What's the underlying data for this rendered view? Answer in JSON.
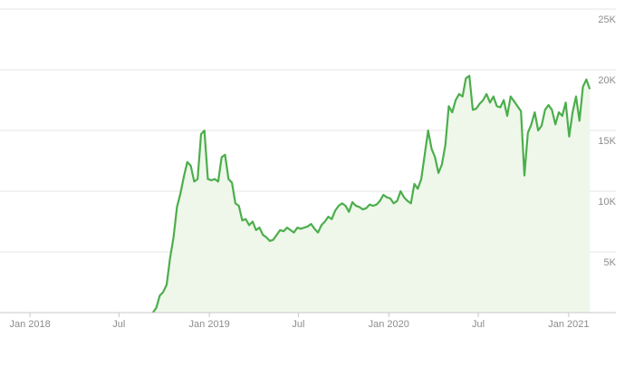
{
  "chart_data": {
    "type": "area",
    "title": "",
    "xlabel": "",
    "ylabel": "",
    "y_axis_position": "right",
    "grid": "horizontal",
    "legend": "none",
    "ylim": [
      0,
      25000
    ],
    "xlim": [
      "2017-11-01",
      "2021-02-20"
    ],
    "y_ticks": [
      {
        "value": 5000,
        "label": "5K"
      },
      {
        "value": 10000,
        "label": "10K"
      },
      {
        "value": 15000,
        "label": "15K"
      },
      {
        "value": 20000,
        "label": "20K"
      },
      {
        "value": 25000,
        "label": "25K"
      }
    ],
    "x_ticks": [
      {
        "date": "2018-01-01",
        "label": "Jan 2018"
      },
      {
        "date": "2018-07-01",
        "label": "Jul"
      },
      {
        "date": "2019-01-01",
        "label": "Jan 2019"
      },
      {
        "date": "2019-07-01",
        "label": "Jul"
      },
      {
        "date": "2020-01-01",
        "label": "Jan 2020"
      },
      {
        "date": "2020-07-01",
        "label": "Jul"
      },
      {
        "date": "2021-01-01",
        "label": "Jan 2021"
      }
    ],
    "colors": {
      "line": "#4cae4c",
      "fill": "#eef7ea",
      "grid": "#e6e6e6",
      "axis": "#c8c8c8",
      "text": "#8c8c8c"
    },
    "series": [
      {
        "x": [
          "2018-09-08",
          "2018-09-15",
          "2018-09-22",
          "2018-09-29",
          "2018-10-06",
          "2018-10-13",
          "2018-10-20",
          "2018-10-27",
          "2018-11-03",
          "2018-11-10",
          "2018-11-17",
          "2018-11-24",
          "2018-12-01",
          "2018-12-08",
          "2018-12-15",
          "2018-12-22",
          "2018-12-29",
          "2019-01-05",
          "2019-01-12",
          "2019-01-19",
          "2019-01-26",
          "2019-02-02",
          "2019-02-09",
          "2019-02-16",
          "2019-02-23",
          "2019-03-02",
          "2019-03-09",
          "2019-03-16",
          "2019-03-23",
          "2019-03-30",
          "2019-04-06",
          "2019-04-13",
          "2019-04-20",
          "2019-04-27",
          "2019-05-04",
          "2019-05-11",
          "2019-05-18",
          "2019-05-25",
          "2019-06-01",
          "2019-06-08",
          "2019-06-15",
          "2019-06-22",
          "2019-06-29",
          "2019-07-06",
          "2019-07-13",
          "2019-07-20",
          "2019-07-27",
          "2019-08-03",
          "2019-08-10",
          "2019-08-17",
          "2019-08-24",
          "2019-08-31",
          "2019-09-07",
          "2019-09-14",
          "2019-09-21",
          "2019-09-28",
          "2019-10-05",
          "2019-10-12",
          "2019-10-19",
          "2019-10-26",
          "2019-11-02",
          "2019-11-09",
          "2019-11-16",
          "2019-11-23",
          "2019-11-30",
          "2019-12-07",
          "2019-12-14",
          "2019-12-21",
          "2019-12-28",
          "2020-01-04",
          "2020-01-11",
          "2020-01-18",
          "2020-01-25",
          "2020-02-01",
          "2020-02-08",
          "2020-02-15",
          "2020-02-22",
          "2020-02-29",
          "2020-03-07",
          "2020-03-14",
          "2020-03-21",
          "2020-03-28",
          "2020-04-04",
          "2020-04-11",
          "2020-04-18",
          "2020-04-25",
          "2020-05-02",
          "2020-05-09",
          "2020-05-16",
          "2020-05-23",
          "2020-05-30",
          "2020-06-06",
          "2020-06-13",
          "2020-06-20",
          "2020-06-27",
          "2020-07-04",
          "2020-07-11",
          "2020-07-18",
          "2020-07-25",
          "2020-08-01",
          "2020-08-08",
          "2020-08-15",
          "2020-08-22",
          "2020-08-29",
          "2020-09-05",
          "2020-09-12",
          "2020-09-19",
          "2020-09-26",
          "2020-10-03",
          "2020-10-10",
          "2020-10-17",
          "2020-10-24",
          "2020-10-31",
          "2020-11-07",
          "2020-11-14",
          "2020-11-21",
          "2020-11-28",
          "2020-12-05",
          "2020-12-12",
          "2020-12-19",
          "2020-12-26",
          "2021-01-02",
          "2021-01-09",
          "2021-01-16",
          "2021-01-23",
          "2021-01-30",
          "2021-02-06",
          "2021-02-13"
        ],
        "values": [
          0,
          400,
          1400,
          1700,
          2300,
          4500,
          6200,
          8700,
          9800,
          11200,
          12400,
          12100,
          10800,
          11000,
          14700,
          15000,
          11000,
          10900,
          11000,
          10800,
          12800,
          13000,
          11000,
          10700,
          9000,
          8800,
          7600,
          7700,
          7200,
          7500,
          6800,
          7000,
          6400,
          6200,
          5900,
          6000,
          6400,
          6800,
          6700,
          7000,
          6800,
          6600,
          7000,
          6900,
          7000,
          7100,
          7300,
          6900,
          6600,
          7200,
          7500,
          7900,
          7700,
          8400,
          8800,
          9000,
          8800,
          8300,
          9100,
          8800,
          8700,
          8500,
          8600,
          8900,
          8800,
          8900,
          9200,
          9700,
          9500,
          9400,
          9000,
          9200,
          10000,
          9500,
          9200,
          9000,
          10600,
          10200,
          11000,
          13000,
          15000,
          13500,
          12800,
          11500,
          12200,
          13800,
          17000,
          16500,
          17500,
          18000,
          17800,
          19300,
          19500,
          16700,
          16800,
          17200,
          17500,
          18000,
          17300,
          17800,
          17000,
          16900,
          17500,
          16200,
          17800,
          17400,
          17000,
          16600,
          11300,
          14800,
          15500,
          16500,
          15000,
          15400,
          16700,
          17100,
          16700,
          15500,
          16500,
          16200,
          17300,
          14500,
          16500,
          17800,
          15800,
          18600,
          19200,
          18400
        ]
      }
    ]
  }
}
